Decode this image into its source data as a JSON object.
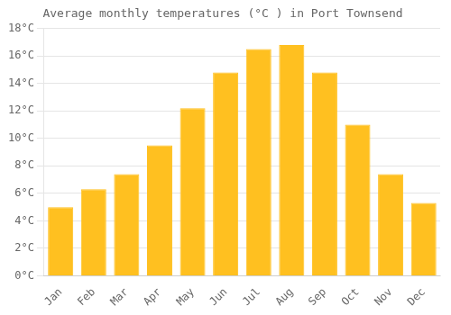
{
  "chart_data": {
    "type": "bar",
    "title": "Average monthly temperatures (°C ) in Port Townsend",
    "categories": [
      "Jan",
      "Feb",
      "Mar",
      "Apr",
      "May",
      "Jun",
      "Jul",
      "Aug",
      "Sep",
      "Oct",
      "Nov",
      "Dec"
    ],
    "values": [
      5.0,
      6.3,
      7.4,
      9.5,
      12.2,
      14.8,
      16.5,
      16.8,
      14.8,
      11.0,
      7.4,
      5.3
    ],
    "color": "#FFC020",
    "ylim": [
      0,
      18
    ],
    "yticks": [
      {
        "value": 0,
        "label": "0°C"
      },
      {
        "value": 2,
        "label": "2°C"
      },
      {
        "value": 4,
        "label": "4°C"
      },
      {
        "value": 6,
        "label": "6°C"
      },
      {
        "value": 8,
        "label": "8°C"
      },
      {
        "value": 10,
        "label": "10°C"
      },
      {
        "value": 12,
        "label": "12°C"
      },
      {
        "value": 14,
        "label": "14°C"
      },
      {
        "value": 16,
        "label": "16°C"
      },
      {
        "value": 18,
        "label": "18°C"
      }
    ],
    "grid": true
  }
}
